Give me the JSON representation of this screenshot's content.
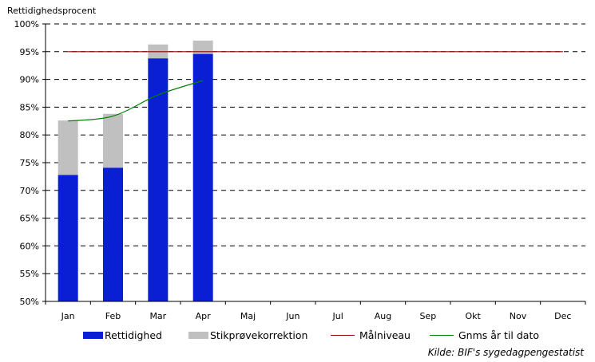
{
  "chart_data": {
    "type": "bar",
    "ylabel": "Rettidighedsprocent",
    "categories": [
      "Jan",
      "Feb",
      "Mar",
      "Apr",
      "Maj",
      "Jun",
      "Jul",
      "Aug",
      "Sep",
      "Okt",
      "Nov",
      "Dec"
    ],
    "y_ticks": [
      "50%",
      "55%",
      "60%",
      "65%",
      "70%",
      "75%",
      "80%",
      "85%",
      "90%",
      "95%",
      "100%"
    ],
    "ylim": [
      50,
      100
    ],
    "grid": true,
    "legend_position": "bottom",
    "series": [
      {
        "name": "Rettidighed",
        "type": "bar",
        "stack": "total",
        "color": "#0a1fd3",
        "values": [
          72.8,
          74.1,
          93.8,
          94.6,
          null,
          null,
          null,
          null,
          null,
          null,
          null,
          null
        ]
      },
      {
        "name": "Stikprøvekorrektion",
        "type": "bar",
        "stack": "total",
        "color": "#c0c0c0",
        "values": [
          9.8,
          9.7,
          2.5,
          2.4,
          null,
          null,
          null,
          null,
          null,
          null,
          null,
          null
        ]
      },
      {
        "name": "Målniveau",
        "type": "line",
        "color": "#8b0000",
        "values": [
          95,
          95,
          95,
          95,
          95,
          95,
          95,
          95,
          95,
          95,
          95,
          95
        ]
      },
      {
        "name": "Gnms år til dato",
        "type": "line",
        "color": "#008000",
        "values": [
          82.5,
          83.4,
          87.2,
          89.8,
          null,
          null,
          null,
          null,
          null,
          null,
          null,
          null
        ]
      }
    ],
    "source": "Kilde: BIF's sygedagpengestatist"
  }
}
